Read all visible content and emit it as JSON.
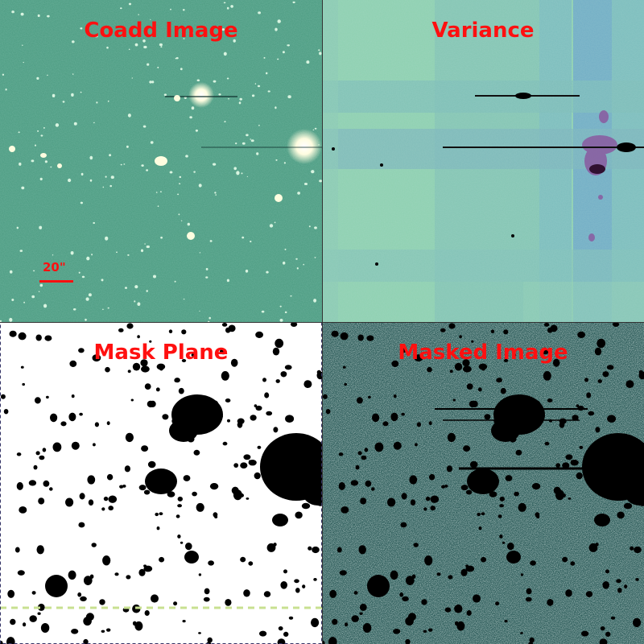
{
  "figure": {
    "panels": [
      {
        "id": "coadd",
        "title": "Coadd Image"
      },
      {
        "id": "variance",
        "title": "Variance"
      },
      {
        "id": "mask",
        "title": "Mask Plane"
      },
      {
        "id": "masked",
        "title": "Masked Image"
      }
    ],
    "scalebar": {
      "label": "20\""
    },
    "colors": {
      "title": "#ff1010",
      "coadd_background": "#4a9a80",
      "source_bright": "#fffde8",
      "variance_background": "#8ed0b0",
      "variance_band": "#78b8c0",
      "variance_mask": "#8a5aa0",
      "mask_background": "#ffffff",
      "mask_source": "#000000",
      "masked_noise_dark": "#2a5a58",
      "masked_noise_light": "#d8f0e8",
      "mask_edge_line": "#c8e090",
      "panel_border": "#333366"
    }
  }
}
